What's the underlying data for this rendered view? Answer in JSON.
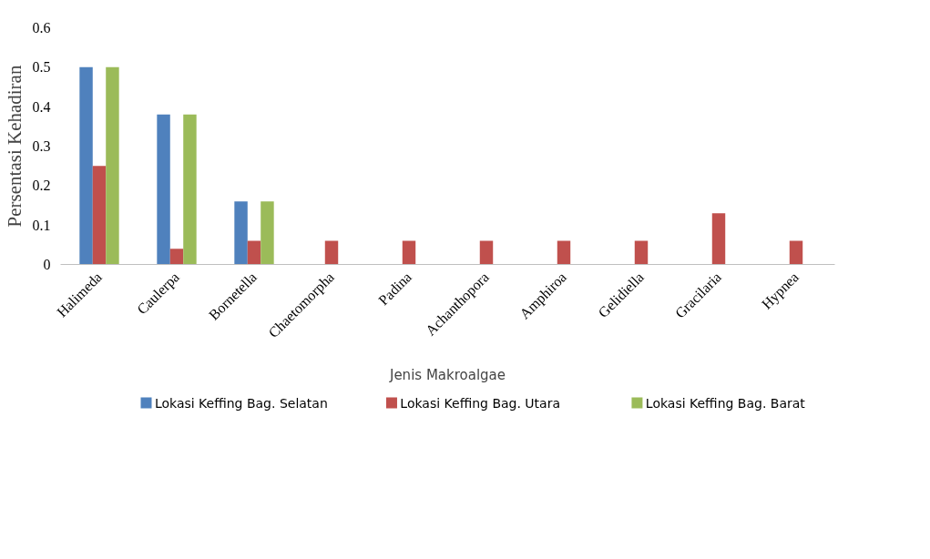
{
  "chart_data": {
    "type": "bar",
    "xlabel": "Jenis Makroalgae",
    "ylabel": "Persentasi Kehadiran",
    "categories": [
      "Halimeda",
      "Caulerpa",
      "Bornetella",
      "Chaetomorpha",
      "Padina",
      "Achanthopora",
      "Amphiroa",
      "Gelidiella",
      "Gracilaria",
      "Hypnea"
    ],
    "series": [
      {
        "name": "Lokasi Keffing Bag. Selatan",
        "color": "#4f81bd",
        "values": [
          0.5,
          0.38,
          0.16,
          0,
          0,
          0,
          0,
          0,
          0,
          0
        ]
      },
      {
        "name": "Lokasi Keffing Bag. Utara",
        "color": "#c0504d",
        "values": [
          0.25,
          0.04,
          0.06,
          0.06,
          0.06,
          0.06,
          0.06,
          0.06,
          0.13,
          0.06
        ]
      },
      {
        "name": "Lokasi Keffing Bag. Barat",
        "color": "#9bbb59",
        "values": [
          0.5,
          0.38,
          0.16,
          0,
          0,
          0,
          0,
          0,
          0,
          0
        ]
      }
    ],
    "ylim": [
      0,
      0.6
    ],
    "yticks": [
      0,
      0.1,
      0.2,
      0.3,
      0.4,
      0.5,
      0.6
    ],
    "grid": false,
    "legend": "bottom"
  }
}
